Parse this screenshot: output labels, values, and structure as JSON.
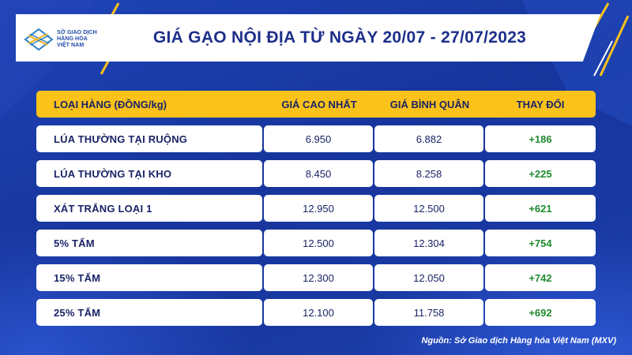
{
  "logo": {
    "line1": "SỞ GIAO DỊCH",
    "line2": "HÀNG HÓA",
    "line3": "VIỆT NAM"
  },
  "title": "GIÁ GẠO NỘI ĐỊA TỪ NGÀY 20/07 - 27/07/2023",
  "table": {
    "headers": [
      "LOẠI HÀNG (ĐỒNG/kg)",
      "GIÁ CAO NHẤT",
      "GIÁ BÌNH QUÂN",
      "THAY ĐỔI"
    ],
    "rows": [
      [
        "LÚA THƯỜNG TẠI RUỘNG",
        "6.950",
        "6.882",
        "+186"
      ],
      [
        "LÚA THƯỜNG TẠI KHO",
        "8.450",
        "8.258",
        "+225"
      ],
      [
        "XÁT TRẮNG LOẠI 1",
        "12.950",
        "12.500",
        "+621"
      ],
      [
        "5% TẤM",
        "12.500",
        "12.304",
        "+754"
      ],
      [
        "15% TẤM",
        "12.300",
        "12.050",
        "+742"
      ],
      [
        "25% TẤM",
        "12.100",
        "11.758",
        "+692"
      ]
    ]
  },
  "source": "Nguồn: Sở Giao dịch Hàng hóa Việt Nam (MXV)",
  "colors": {
    "background": "#1a3a9e",
    "header": "#fbc21a",
    "change_positive": "#1f8a2e",
    "title_text": "#1d2f8a"
  }
}
